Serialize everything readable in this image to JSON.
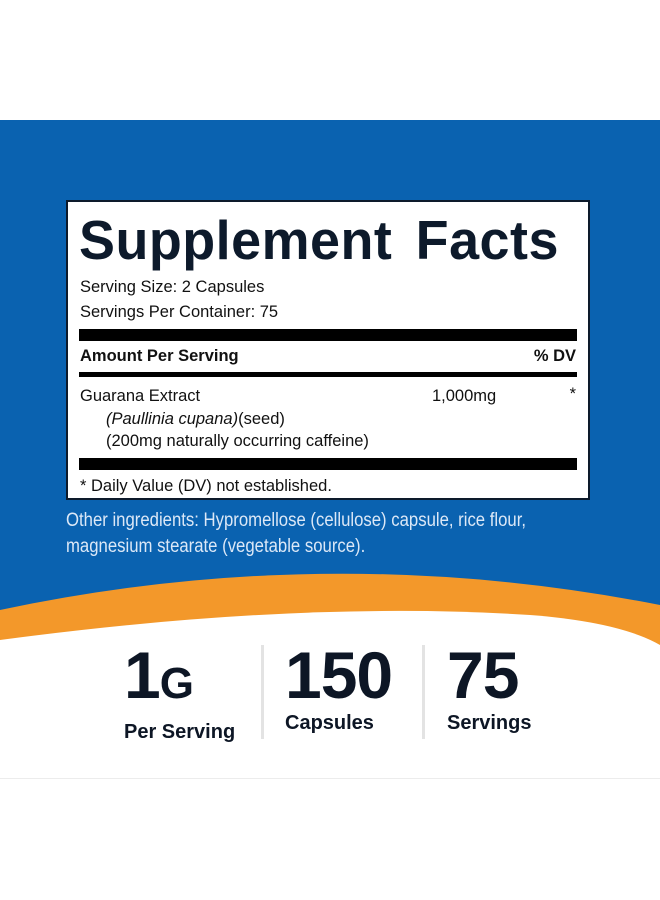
{
  "colors": {
    "blue": "#0a62b0",
    "orange": "#f3982a",
    "ink": "#0d1625"
  },
  "label": {
    "title": "Supplement Facts",
    "serving_size": "Serving Size: 2 Capsules",
    "servings_per_container": "Servings Per Container: 75",
    "amount_header": "Amount Per Serving",
    "dv_header": "% DV",
    "ingredient": {
      "name": "Guarana Extract",
      "latin": "(Paullinia cupana)",
      "part": "(seed)",
      "note": "(200mg naturally occurring caffeine)",
      "amount": "1,000mg",
      "dv": "*"
    },
    "footnote": "* Daily Value (DV) not established."
  },
  "other_ingredients": "Other ingredients: Hypromellose (cellulose) capsule, rice flour, magnesium stearate (vegetable source).",
  "stats": [
    {
      "value": "1",
      "unit": "G",
      "label": "Per Serving"
    },
    {
      "value": "150",
      "unit": "",
      "label": "Capsules"
    },
    {
      "value": "75",
      "unit": "",
      "label": "Servings"
    }
  ]
}
